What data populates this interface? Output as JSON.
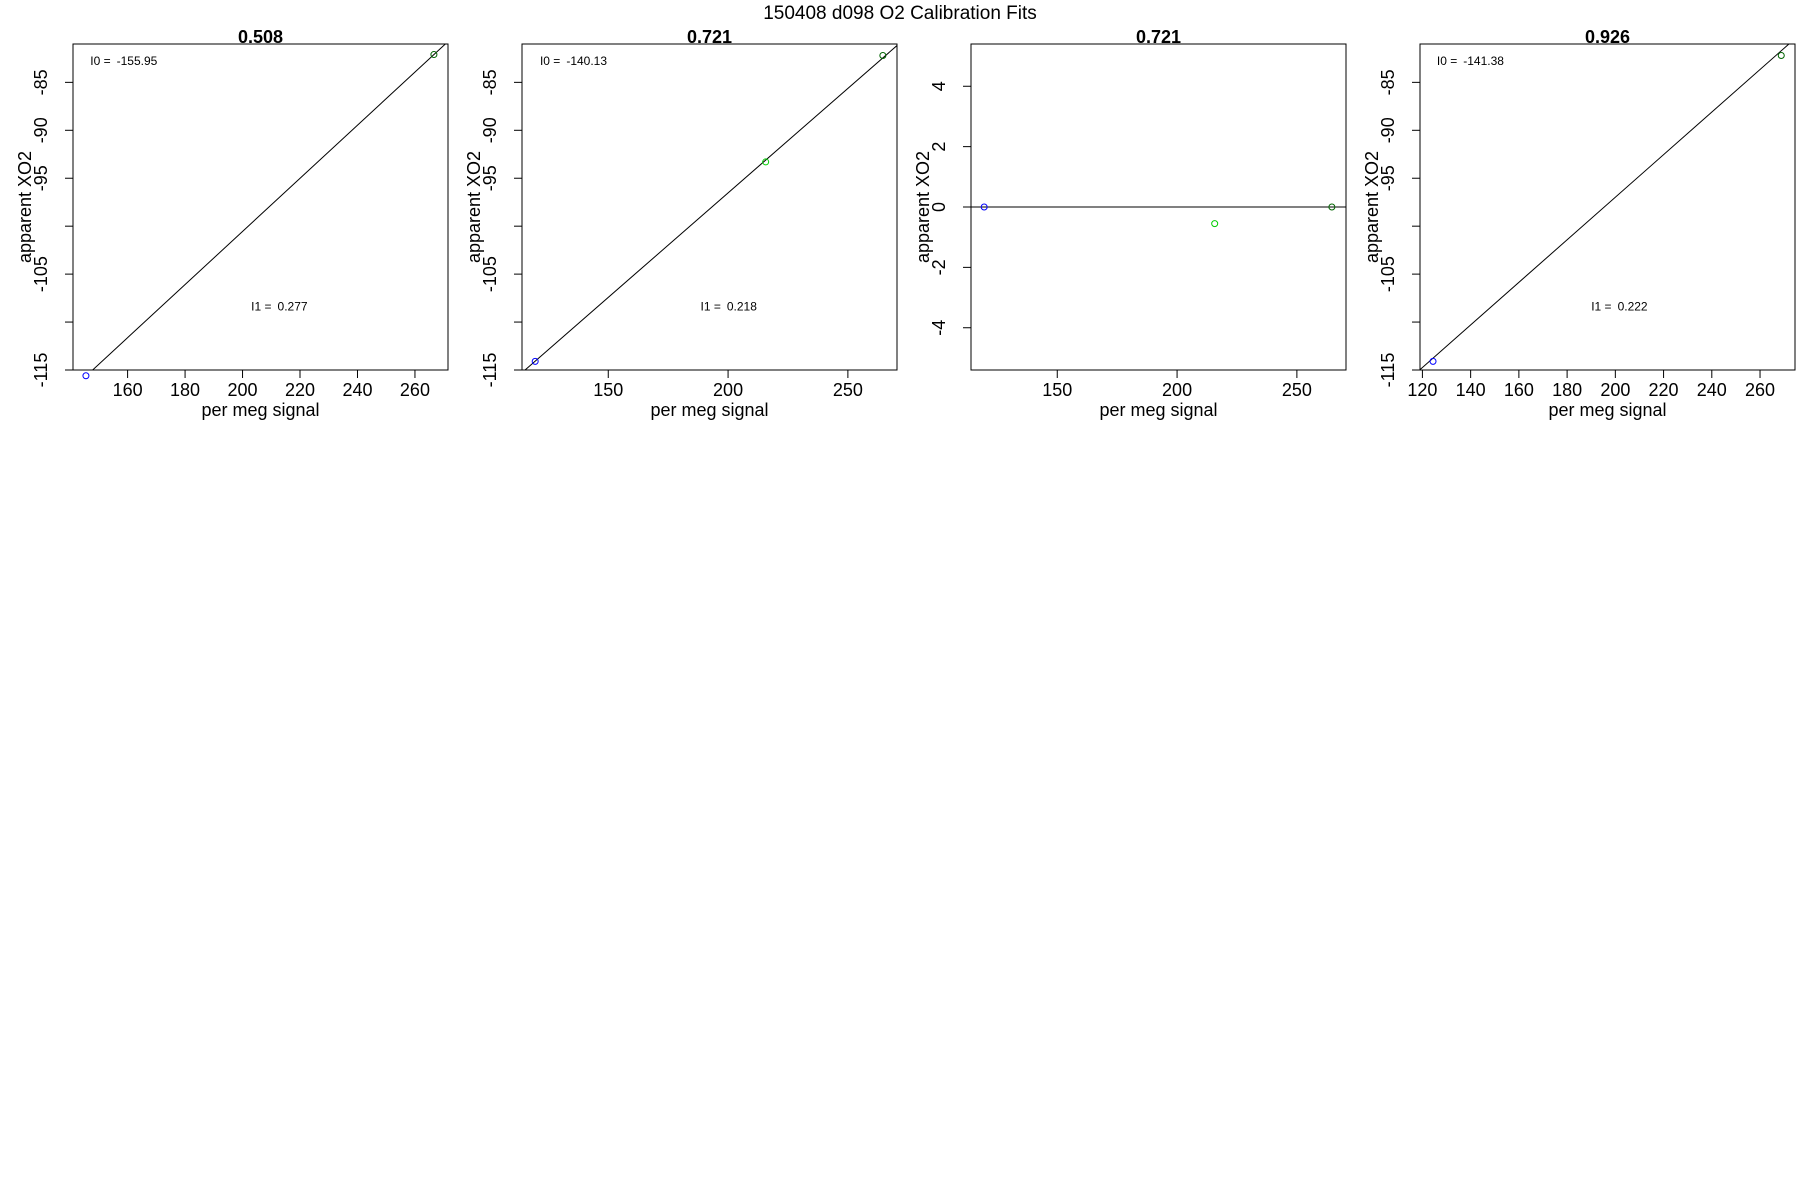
{
  "figure": {
    "title": "150408   d098   O2 Calibration Fits"
  },
  "colors": {
    "axis": "#000000",
    "fit_line": "#000000",
    "point_blue": "#0000ff",
    "point_green": "#00cc00",
    "point_darkgreen": "#006400"
  },
  "chart_data": [
    {
      "type": "scatter",
      "title": "0.508",
      "xlabel": "per meg signal",
      "ylabel": "apparent XO2",
      "xlim": [
        141,
        271.5
      ],
      "ylim": [
        -115,
        -81
      ],
      "xticks": [
        160,
        180,
        200,
        220,
        240,
        260
      ],
      "yticks": [
        -115,
        -105,
        -95,
        -90,
        -85
      ],
      "yticks_unlabeled": [
        -110,
        -100
      ],
      "grid": false,
      "fit_line": {
        "intercept": -155.95,
        "slope": 0.277
      },
      "annotations": [
        {
          "name": "I0",
          "label": "I0 =",
          "value": "-155.95",
          "x": 147,
          "y": -83.2
        },
        {
          "name": "I1",
          "label": "I1 =",
          "value": "0.277",
          "x": 203,
          "y": -108.8
        }
      ],
      "points": [
        {
          "x": 145.5,
          "y": -115.6,
          "color": "blue"
        },
        {
          "x": 266.6,
          "y": -82.1,
          "color": "darkgreen"
        }
      ]
    },
    {
      "type": "scatter",
      "title": "0.721",
      "xlabel": "per meg signal",
      "ylabel": "apparent XO2",
      "xlim": [
        114,
        270.5
      ],
      "ylim": [
        -115,
        -81
      ],
      "xticks": [
        150,
        200,
        250
      ],
      "yticks": [
        -115,
        -105,
        -95,
        -90,
        -85
      ],
      "yticks_unlabeled": [
        -110,
        -100
      ],
      "grid": false,
      "fit_line": {
        "intercept": -140.13,
        "slope": 0.218
      },
      "annotations": [
        {
          "name": "I0",
          "label": "I0 =",
          "value": "-140.13",
          "x": 121.5,
          "y": -83.2
        },
        {
          "name": "I1",
          "label": "I1 =",
          "value": "0.218",
          "x": 188.5,
          "y": -108.8
        }
      ],
      "points": [
        {
          "x": 119.5,
          "y": -114.1,
          "color": "blue"
        },
        {
          "x": 215.7,
          "y": -93.3,
          "color": "green"
        },
        {
          "x": 264.6,
          "y": -82.2,
          "color": "darkgreen"
        }
      ]
    },
    {
      "type": "scatter",
      "title": "0.721",
      "xlabel": "per meg signal",
      "ylabel": "apparent XO2",
      "xlim": [
        114,
        270.5
      ],
      "ylim": [
        -5.4,
        5.4
      ],
      "xticks": [
        150,
        200,
        250
      ],
      "yticks": [
        -4,
        -2,
        0,
        2,
        4
      ],
      "grid": false,
      "fit_line": {
        "intercept": 0,
        "slope": 0
      },
      "annotations": [],
      "points": [
        {
          "x": 119.5,
          "y": 0,
          "color": "blue"
        },
        {
          "x": 215.7,
          "y": -0.55,
          "color": "green"
        },
        {
          "x": 264.6,
          "y": 0,
          "color": "darkgreen"
        }
      ]
    },
    {
      "type": "scatter",
      "title": "0.926",
      "xlabel": "per meg signal",
      "ylabel": "apparent XO2",
      "xlim": [
        119,
        274.5
      ],
      "ylim": [
        -115,
        -81
      ],
      "xticks": [
        120,
        140,
        160,
        180,
        200,
        220,
        240,
        260
      ],
      "yticks": [
        -115,
        -105,
        -95,
        -90,
        -85
      ],
      "yticks_unlabeled": [
        -110,
        -100
      ],
      "grid": false,
      "fit_line": {
        "intercept": -141.38,
        "slope": 0.222
      },
      "annotations": [
        {
          "name": "I0",
          "label": "I0 =",
          "value": "-141.38",
          "x": 126,
          "y": -83.2
        },
        {
          "name": "I1",
          "label": "I1 =",
          "value": "0.222",
          "x": 190,
          "y": -108.8
        }
      ],
      "points": [
        {
          "x": 124.4,
          "y": -114.1,
          "color": "blue"
        },
        {
          "x": 268.8,
          "y": -82.2,
          "color": "darkgreen"
        }
      ]
    }
  ]
}
